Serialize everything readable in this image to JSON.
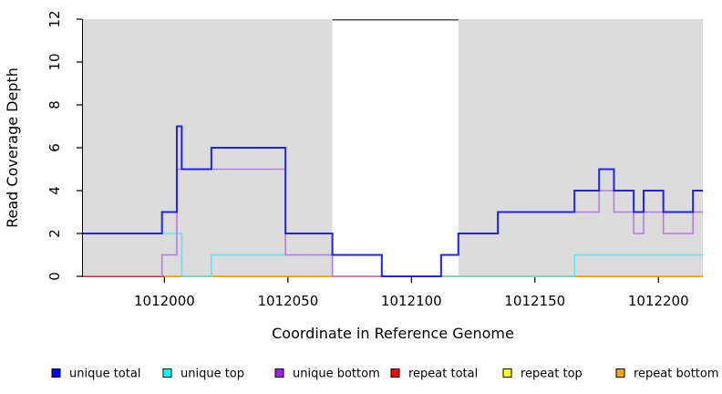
{
  "chart_data": {
    "type": "line",
    "step": true,
    "title": "",
    "xlabel": "Coordinate in Reference Genome",
    "ylabel": "Read Coverage Depth",
    "xlim": [
      1011967,
      1012218
    ],
    "ylim": [
      0,
      12
    ],
    "xticks": [
      1012000,
      1012050,
      1012100,
      1012150,
      1012200
    ],
    "yticks": [
      0,
      2,
      4,
      6,
      8,
      10,
      12
    ],
    "grid": false,
    "panel_color": "#dcdcdc",
    "gap_band": {
      "x0": 1012068,
      "x1": 1012119,
      "color": "#ffffff",
      "top_border_color": "#4d4d4d"
    },
    "series": [
      {
        "name": "repeat total",
        "color": "#e05567",
        "width": 1.4,
        "steps": [
          [
            1011967,
            0
          ]
        ]
      },
      {
        "name": "repeat top",
        "color": "#ffff00",
        "width": 1.4,
        "steps": [
          [
            1012000,
            0
          ]
        ]
      },
      {
        "name": "repeat bottom",
        "color": "#ffa500",
        "width": 1.7,
        "steps": [
          [
            1012000,
            0
          ]
        ]
      },
      {
        "name": "unique top",
        "color": "#55e8f2",
        "width": 1.6,
        "steps": [
          [
            1011967,
            2
          ],
          [
            1012007,
            0
          ],
          [
            1012019,
            1
          ],
          [
            1012088,
            0
          ],
          [
            1012166,
            1
          ]
        ]
      },
      {
        "name": "unique bottom",
        "color": "#bb78e6",
        "width": 1.6,
        "steps": [
          [
            1011999,
            0
          ],
          [
            1011999,
            1
          ],
          [
            1012005,
            5
          ],
          [
            1012049,
            1
          ],
          [
            1012068,
            0
          ],
          [
            1012112,
            1
          ],
          [
            1012119,
            2
          ],
          [
            1012135,
            3
          ],
          [
            1012176,
            4
          ],
          [
            1012182,
            3
          ],
          [
            1012190,
            2
          ],
          [
            1012194,
            3
          ],
          [
            1012202,
            2
          ],
          [
            1012214,
            3
          ]
        ]
      },
      {
        "name": "unique total",
        "color": "#2323e8",
        "width": 2.0,
        "steps": [
          [
            1011967,
            2
          ],
          [
            1011999,
            3
          ],
          [
            1012005,
            7
          ],
          [
            1012007,
            5
          ],
          [
            1012019,
            6
          ],
          [
            1012049,
            2
          ],
          [
            1012068,
            1
          ],
          [
            1012088,
            0
          ],
          [
            1012112,
            1
          ],
          [
            1012119,
            2
          ],
          [
            1012135,
            3
          ],
          [
            1012166,
            4
          ],
          [
            1012176,
            5
          ],
          [
            1012182,
            4
          ],
          [
            1012190,
            3
          ],
          [
            1012194,
            4
          ],
          [
            1012202,
            3
          ],
          [
            1012214,
            4
          ]
        ]
      }
    ],
    "legend": [
      {
        "label": "unique total",
        "color": "#0000ff"
      },
      {
        "label": "unique top",
        "color": "#00ffff"
      },
      {
        "label": "unique bottom",
        "color": "#a020f0"
      },
      {
        "label": "repeat total",
        "color": "#ff0000"
      },
      {
        "label": "repeat top",
        "color": "#ffff00"
      },
      {
        "label": "repeat bottom",
        "color": "#ffa500"
      }
    ],
    "legend_position": "bottom"
  }
}
